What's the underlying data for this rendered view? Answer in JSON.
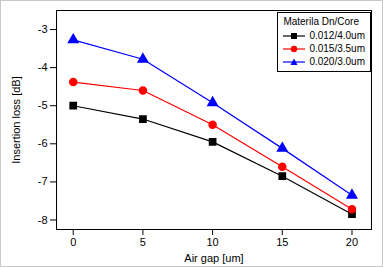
{
  "chart_data": {
    "type": "line",
    "x_label": "Air gap [um]",
    "y_label": "Insertion loss [dB]",
    "x": [
      0,
      5,
      10,
      15,
      20
    ],
    "xlim": [
      -1.2,
      21.4
    ],
    "xticks": [
      0,
      5,
      10,
      15,
      20
    ],
    "ylim": [
      -8.25,
      -2.5
    ],
    "yticks": [
      -8,
      -7,
      -6,
      -5,
      -4,
      -3
    ],
    "grid": false,
    "legend": "upper right",
    "legend_title": "Materila Dn/Core",
    "series": [
      {
        "name": "0.012/4.0um",
        "color": "#000000",
        "marker": "square",
        "line_style": "solid",
        "values": [
          -5.0,
          -5.35,
          -5.95,
          -6.85,
          -7.85
        ]
      },
      {
        "name": "0.015/3.5um",
        "color": "#ff0000",
        "marker": "circle",
        "line_style": "solid",
        "values": [
          -4.38,
          -4.6,
          -5.5,
          -6.6,
          -7.72
        ]
      },
      {
        "name": "0.020/3.0um",
        "color": "#0000ff",
        "marker": "triangle",
        "line_style": "solid",
        "values": [
          -3.27,
          -3.78,
          -4.92,
          -6.12,
          -7.35
        ]
      }
    ]
  }
}
